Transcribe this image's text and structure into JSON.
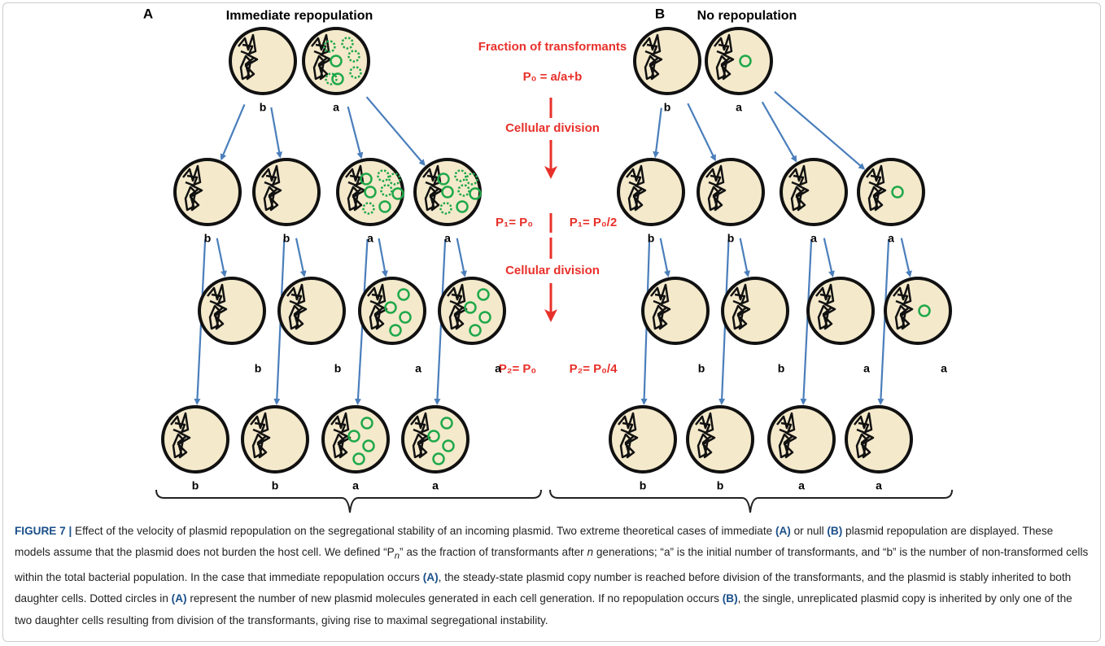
{
  "panels": [
    {
      "label": "A",
      "title": "Immediate repopulation",
      "rows": [
        [
          "b",
          "a"
        ],
        [
          "b",
          "b",
          "a",
          "a"
        ],
        [
          "b",
          "b",
          "a",
          "a"
        ],
        [
          "b",
          "b",
          "a",
          "a"
        ]
      ]
    },
    {
      "label": "B",
      "title": "No repopulation",
      "rows": [
        [
          "b",
          "a"
        ],
        [
          "b",
          "b",
          "a",
          "a"
        ],
        [
          "b",
          "b",
          "a",
          "a"
        ],
        [
          "b",
          "b",
          "a",
          "a"
        ]
      ]
    }
  ],
  "center": {
    "heading": "Fraction of transformants",
    "p0": "P₀ = a/a+b",
    "division_1": "Cellular division",
    "p1_a": "P₁= P₀",
    "p1_b": "P₁= P₀/2",
    "division_2": "Cellular division",
    "p2_a": "P₂= P₀",
    "p2_b": "P₂= P₀/4"
  },
  "caption": {
    "label": "FIGURE 7 |",
    "parts": [
      " Effect of the velocity of plasmid repopulation on the segregational stability of an incoming plasmid. Two extreme theoretical cases of immediate ",
      "(A)",
      " or null ",
      "(B)",
      " plasmid repopulation are displayed. These models assume that the plasmid does not burden the host cell. We defined “P",
      "n",
      "” as the fraction of transformants after ",
      "n",
      " generations; “a” is the initial number of transformants, and “b” is the number of non-transformed cells within the total bacterial population. In the case that immediate repopulation occurs ",
      "(A)",
      ", the steady-state plasmid copy number is reached before division of the transformants, and the plasmid is stably inherited to both daughter cells. Dotted circles in ",
      "(A)",
      " represent the number of new plasmid molecules generated in each cell generation. If no repopulation occurs ",
      "(B)",
      ", the single, unreplicated plasmid copy is inherited by only one of the two daughter cells resulting from division of the transformants, giving rise to maximal segregational instability."
    ]
  }
}
